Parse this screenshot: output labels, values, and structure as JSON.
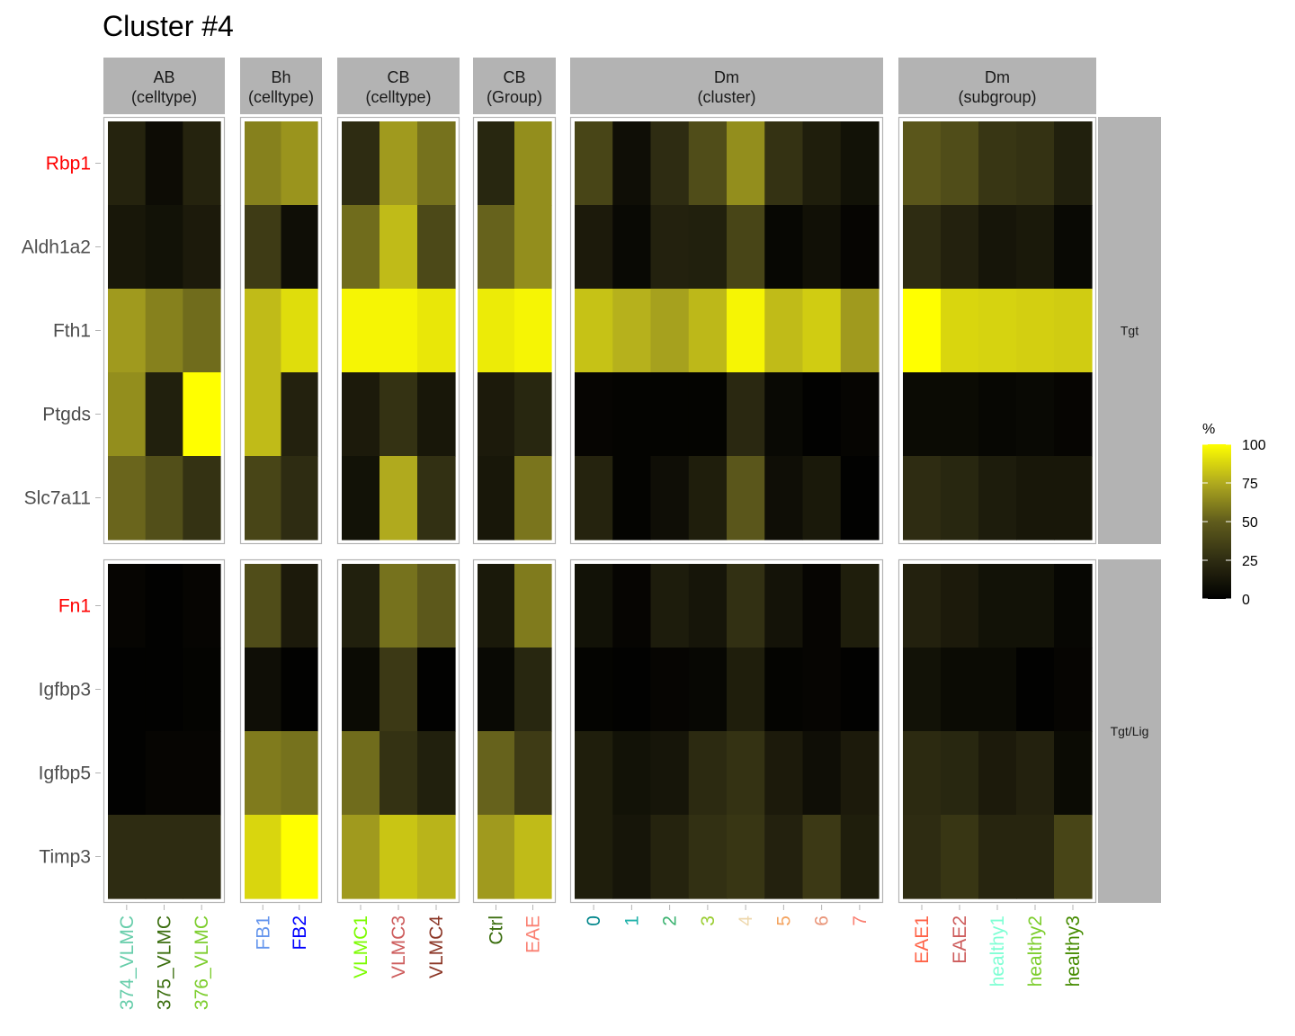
{
  "chart_data": {
    "type": "heatmap",
    "title": "Cluster #4",
    "legend": {
      "title": "%",
      "ticks": [
        0,
        25,
        50,
        75,
        100
      ],
      "range": [
        0,
        100
      ],
      "low_color": "#000000",
      "high_color": "#FFFF00",
      "position": "right"
    },
    "row_panels": [
      {
        "label": "Tgt",
        "genes": [
          "Rbp1",
          "Aldh1a2",
          "Fth1",
          "Ptgds",
          "Slc7a11"
        ]
      },
      {
        "label": "Tgt/Lig",
        "genes": [
          "Fn1",
          "Igfbp3",
          "Igfbp5",
          "Timp3"
        ]
      }
    ],
    "gene_colors": {
      "Rbp1": "#FF0000",
      "Aldh1a2": "#4D4D4D",
      "Fth1": "#4D4D4D",
      "Ptgds": "#4D4D4D",
      "Slc7a11": "#4D4D4D",
      "Fn1": "#FF0000",
      "Igfbp3": "#4D4D4D",
      "Igfbp5": "#4D4D4D",
      "Timp3": "#4D4D4D"
    },
    "col_panels": [
      {
        "label_line1": "AB",
        "label_line2": "(celltype)",
        "columns": [
          "374_VLMC",
          "375_VLMC",
          "376_VLMC"
        ],
        "column_colors": [
          "#66CDAA",
          "#3B6E0F",
          "#7CCD2C"
        ],
        "values": {
          "Rbp1": [
            20,
            7,
            20
          ],
          "Aldh1a2": [
            13,
            10,
            15
          ],
          "Fth1": [
            70,
            62,
            55
          ],
          "Ptgds": [
            66,
            18,
            100
          ],
          "Slc7a11": [
            53,
            43,
            28
          ],
          "Fn1": [
            3,
            1,
            3
          ],
          "Igfbp3": [
            1,
            1,
            2
          ],
          "Igfbp5": [
            1,
            3,
            3
          ],
          "Timp3": [
            25,
            25,
            25
          ]
        }
      },
      {
        "label_line1": "Bh",
        "label_line2": "(celltype)",
        "columns": [
          "FB1",
          "FB2"
        ],
        "column_colors": [
          "#6495ED",
          "#0000FF"
        ],
        "values": {
          "Rbp1": [
            62,
            68
          ],
          "Aldh1a2": [
            33,
            8
          ],
          "Fth1": [
            80,
            90
          ],
          "Ptgds": [
            80,
            19
          ],
          "Slc7a11": [
            38,
            25
          ],
          "Fn1": [
            42,
            15
          ],
          "Igfbp3": [
            8,
            1
          ],
          "Igfbp5": [
            60,
            57
          ],
          "Timp3": [
            88,
            100
          ]
        }
      },
      {
        "label_line1": "CB",
        "label_line2": "(celltype)",
        "columns": [
          "VLMC1",
          "VLMC3",
          "VLMC4"
        ],
        "column_colors": [
          "#7CFC00",
          "#CD5C5C",
          "#8B3626"
        ],
        "values": {
          "Rbp1": [
            25,
            70,
            57
          ],
          "Aldh1a2": [
            55,
            80,
            40
          ],
          "Fth1": [
            97,
            97,
            93
          ],
          "Ptgds": [
            15,
            28,
            13
          ],
          "Slc7a11": [
            10,
            75,
            27
          ],
          "Fn1": [
            18,
            57,
            48
          ],
          "Igfbp3": [
            6,
            32,
            1
          ],
          "Igfbp5": [
            55,
            28,
            18
          ],
          "Timp3": [
            70,
            83,
            78
          ]
        }
      },
      {
        "label_line1": "CB",
        "label_line2": "(Group)",
        "columns": [
          "Ctrl",
          "EAE"
        ],
        "column_colors": [
          "#3B6E0F",
          "#FA8072"
        ],
        "values": {
          "Rbp1": [
            22,
            66
          ],
          "Aldh1a2": [
            52,
            66
          ],
          "Fth1": [
            94,
            97
          ],
          "Ptgds": [
            15,
            22
          ],
          "Slc7a11": [
            13,
            58
          ],
          "Fn1": [
            14,
            60
          ],
          "Igfbp3": [
            5,
            22
          ],
          "Igfbp5": [
            52,
            33
          ],
          "Timp3": [
            70,
            80
          ]
        }
      },
      {
        "label_line1": "Dm",
        "label_line2": "(cluster)",
        "columns": [
          "0",
          "1",
          "2",
          "3",
          "4",
          "5",
          "6",
          "7"
        ],
        "column_colors": [
          "#00868B",
          "#20B2AA",
          "#3CB371",
          "#9ACD32",
          "#EED8AE",
          "#F4A460",
          "#E9967A",
          "#FA8072"
        ],
        "values": {
          "Rbp1": [
            38,
            8,
            25,
            42,
            66,
            28,
            17,
            10
          ],
          "Aldh1a2": [
            15,
            5,
            19,
            18,
            38,
            4,
            9,
            3
          ],
          "Fth1": [
            82,
            77,
            72,
            79,
            97,
            80,
            85,
            70
          ],
          "Ptgds": [
            3,
            2,
            2,
            2,
            23,
            5,
            1,
            3
          ],
          "Slc7a11": [
            20,
            2,
            8,
            17,
            47,
            8,
            14,
            1
          ],
          "Fn1": [
            10,
            3,
            16,
            12,
            27,
            11,
            3,
            17
          ],
          "Igfbp3": [
            2,
            1,
            3,
            4,
            17,
            2,
            3,
            1
          ],
          "Igfbp5": [
            17,
            10,
            12,
            24,
            28,
            15,
            8,
            15
          ],
          "Timp3": [
            17,
            12,
            20,
            27,
            30,
            19,
            32,
            17
          ]
        }
      },
      {
        "label_line1": "Dm",
        "label_line2": "(subgroup)",
        "columns": [
          "EAE1",
          "EAE2",
          "healthy1",
          "healthy2",
          "healthy3"
        ],
        "column_colors": [
          "#FF6347",
          "#CD5C5C",
          "#7FFFD4",
          "#7CCD2C",
          "#458B00"
        ],
        "values": {
          "Rbp1": [
            47,
            42,
            30,
            28,
            18
          ],
          "Aldh1a2": [
            25,
            19,
            12,
            14,
            5
          ],
          "Fth1": [
            100,
            88,
            87,
            86,
            85
          ],
          "Ptgds": [
            6,
            6,
            4,
            5,
            3
          ],
          "Slc7a11": [
            25,
            22,
            16,
            13,
            13
          ],
          "Fn1": [
            19,
            15,
            10,
            10,
            4
          ],
          "Igfbp3": [
            10,
            6,
            6,
            1,
            3
          ],
          "Igfbp5": [
            24,
            22,
            15,
            19,
            6
          ],
          "Timp3": [
            25,
            30,
            21,
            21,
            38
          ]
        }
      }
    ]
  }
}
